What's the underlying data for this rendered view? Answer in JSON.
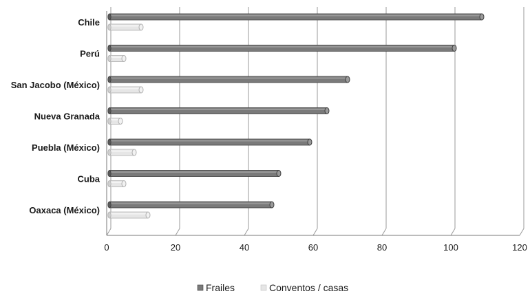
{
  "chart_data": {
    "type": "bar",
    "orientation": "horizontal",
    "style": "3d-cylinder",
    "categories": [
      "Chile",
      "Perú",
      "San Jacobo (México)",
      "Nueva Granada",
      "Puebla (México)",
      "Cuba",
      "Oaxaca (México)"
    ],
    "series": [
      {
        "name": "Frailes",
        "values": [
          109,
          101,
          70,
          64,
          59,
          50,
          48
        ],
        "color": "#7a7a7a"
      },
      {
        "name": "Conventos / casas",
        "values": [
          10,
          5,
          10,
          4,
          8,
          5,
          12
        ],
        "color": "#e6e6e6"
      }
    ],
    "xlim": [
      0,
      120
    ],
    "x_ticks": [
      0,
      20,
      40,
      60,
      80,
      100,
      120
    ],
    "grid": "vertical",
    "legend": "bottom",
    "title": "",
    "xlabel": "",
    "ylabel": ""
  }
}
